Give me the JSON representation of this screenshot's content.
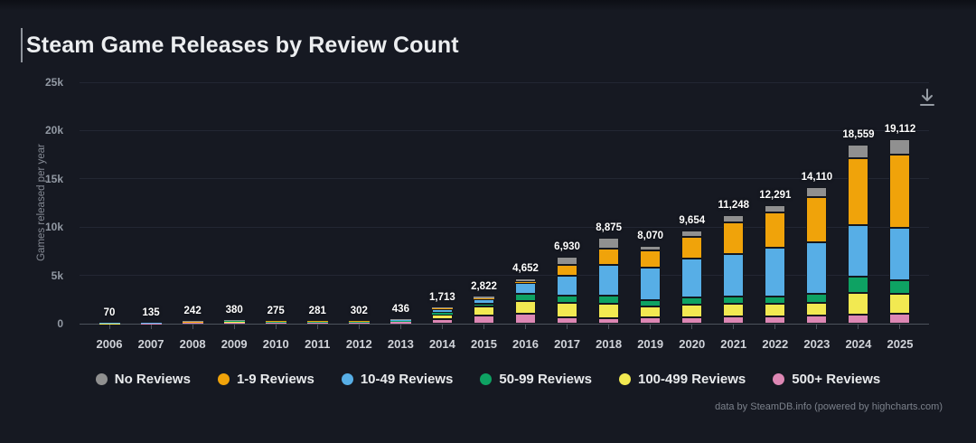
{
  "page": {
    "background_color": "#161922",
    "footer": "data by SteamDB.info (powered by highcharts.com)",
    "icons": {
      "download": "arrow-down-to-line"
    }
  },
  "chart_data": {
    "type": "bar",
    "stacked": true,
    "title": "Steam Game Releases by Review Count",
    "ylabel": "Games released per year",
    "xlabel": "",
    "ylim": [
      0,
      25000
    ],
    "grid": true,
    "legend_position": "bottom",
    "yticks": [
      {
        "v": 0,
        "label": "0"
      },
      {
        "v": 5000,
        "label": "5k"
      },
      {
        "v": 10000,
        "label": "10k"
      },
      {
        "v": 15000,
        "label": "15k"
      },
      {
        "v": 20000,
        "label": "20k"
      },
      {
        "v": 25000,
        "label": "25k"
      }
    ],
    "categories": [
      "2006",
      "2007",
      "2008",
      "2009",
      "2010",
      "2011",
      "2012",
      "2013",
      "2014",
      "2015",
      "2016",
      "2017",
      "2018",
      "2019",
      "2020",
      "2021",
      "2022",
      "2023",
      "2024",
      "2025"
    ],
    "totals": [
      70,
      135,
      242,
      380,
      275,
      281,
      302,
      436,
      1713,
      2822,
      4652,
      6930,
      8875,
      8070,
      9654,
      11248,
      12291,
      14110,
      18559,
      19112
    ],
    "series": [
      {
        "name": "500+ Reviews",
        "color": "#dd87b4",
        "values": [
          25,
          45,
          80,
          130,
          95,
          100,
          105,
          150,
          430,
          820,
          1030,
          690,
          590,
          670,
          700,
          750,
          730,
          800,
          970,
          1000
        ]
      },
      {
        "name": "100-499 Reviews",
        "color": "#f2e951",
        "values": [
          20,
          40,
          70,
          110,
          80,
          80,
          88,
          125,
          500,
          960,
          1350,
          1480,
          1500,
          1100,
          1250,
          1300,
          1350,
          1400,
          2200,
          2050
        ]
      },
      {
        "name": "50-99 Reviews",
        "color": "#0ea263",
        "values": [
          8,
          15,
          25,
          40,
          28,
          28,
          30,
          45,
          160,
          290,
          690,
          720,
          790,
          700,
          750,
          800,
          760,
          900,
          1700,
          1450
        ]
      },
      {
        "name": "10-49 Reviews",
        "color": "#57aee6",
        "values": [
          12,
          25,
          50,
          75,
          55,
          55,
          60,
          90,
          420,
          480,
          1120,
          2070,
          3210,
          3300,
          4000,
          4400,
          5000,
          5300,
          5350,
          5400
        ]
      },
      {
        "name": "1-9 Reviews",
        "color": "#f0a30a",
        "values": [
          3,
          6,
          10,
          15,
          10,
          11,
          12,
          16,
          120,
          90,
          150,
          1090,
          1700,
          1800,
          2300,
          3200,
          3700,
          4700,
          6900,
          7600
        ]
      },
      {
        "name": "No Reviews",
        "color": "#909090",
        "values": [
          2,
          4,
          7,
          10,
          7,
          7,
          7,
          10,
          83,
          182,
          312,
          880,
          1085,
          500,
          654,
          798,
          751,
          1010,
          1439,
          1612
        ]
      }
    ],
    "legend_order": [
      "No Reviews",
      "1-9 Reviews",
      "10-49 Reviews",
      "50-99 Reviews",
      "100-499 Reviews",
      "500+ Reviews"
    ]
  }
}
